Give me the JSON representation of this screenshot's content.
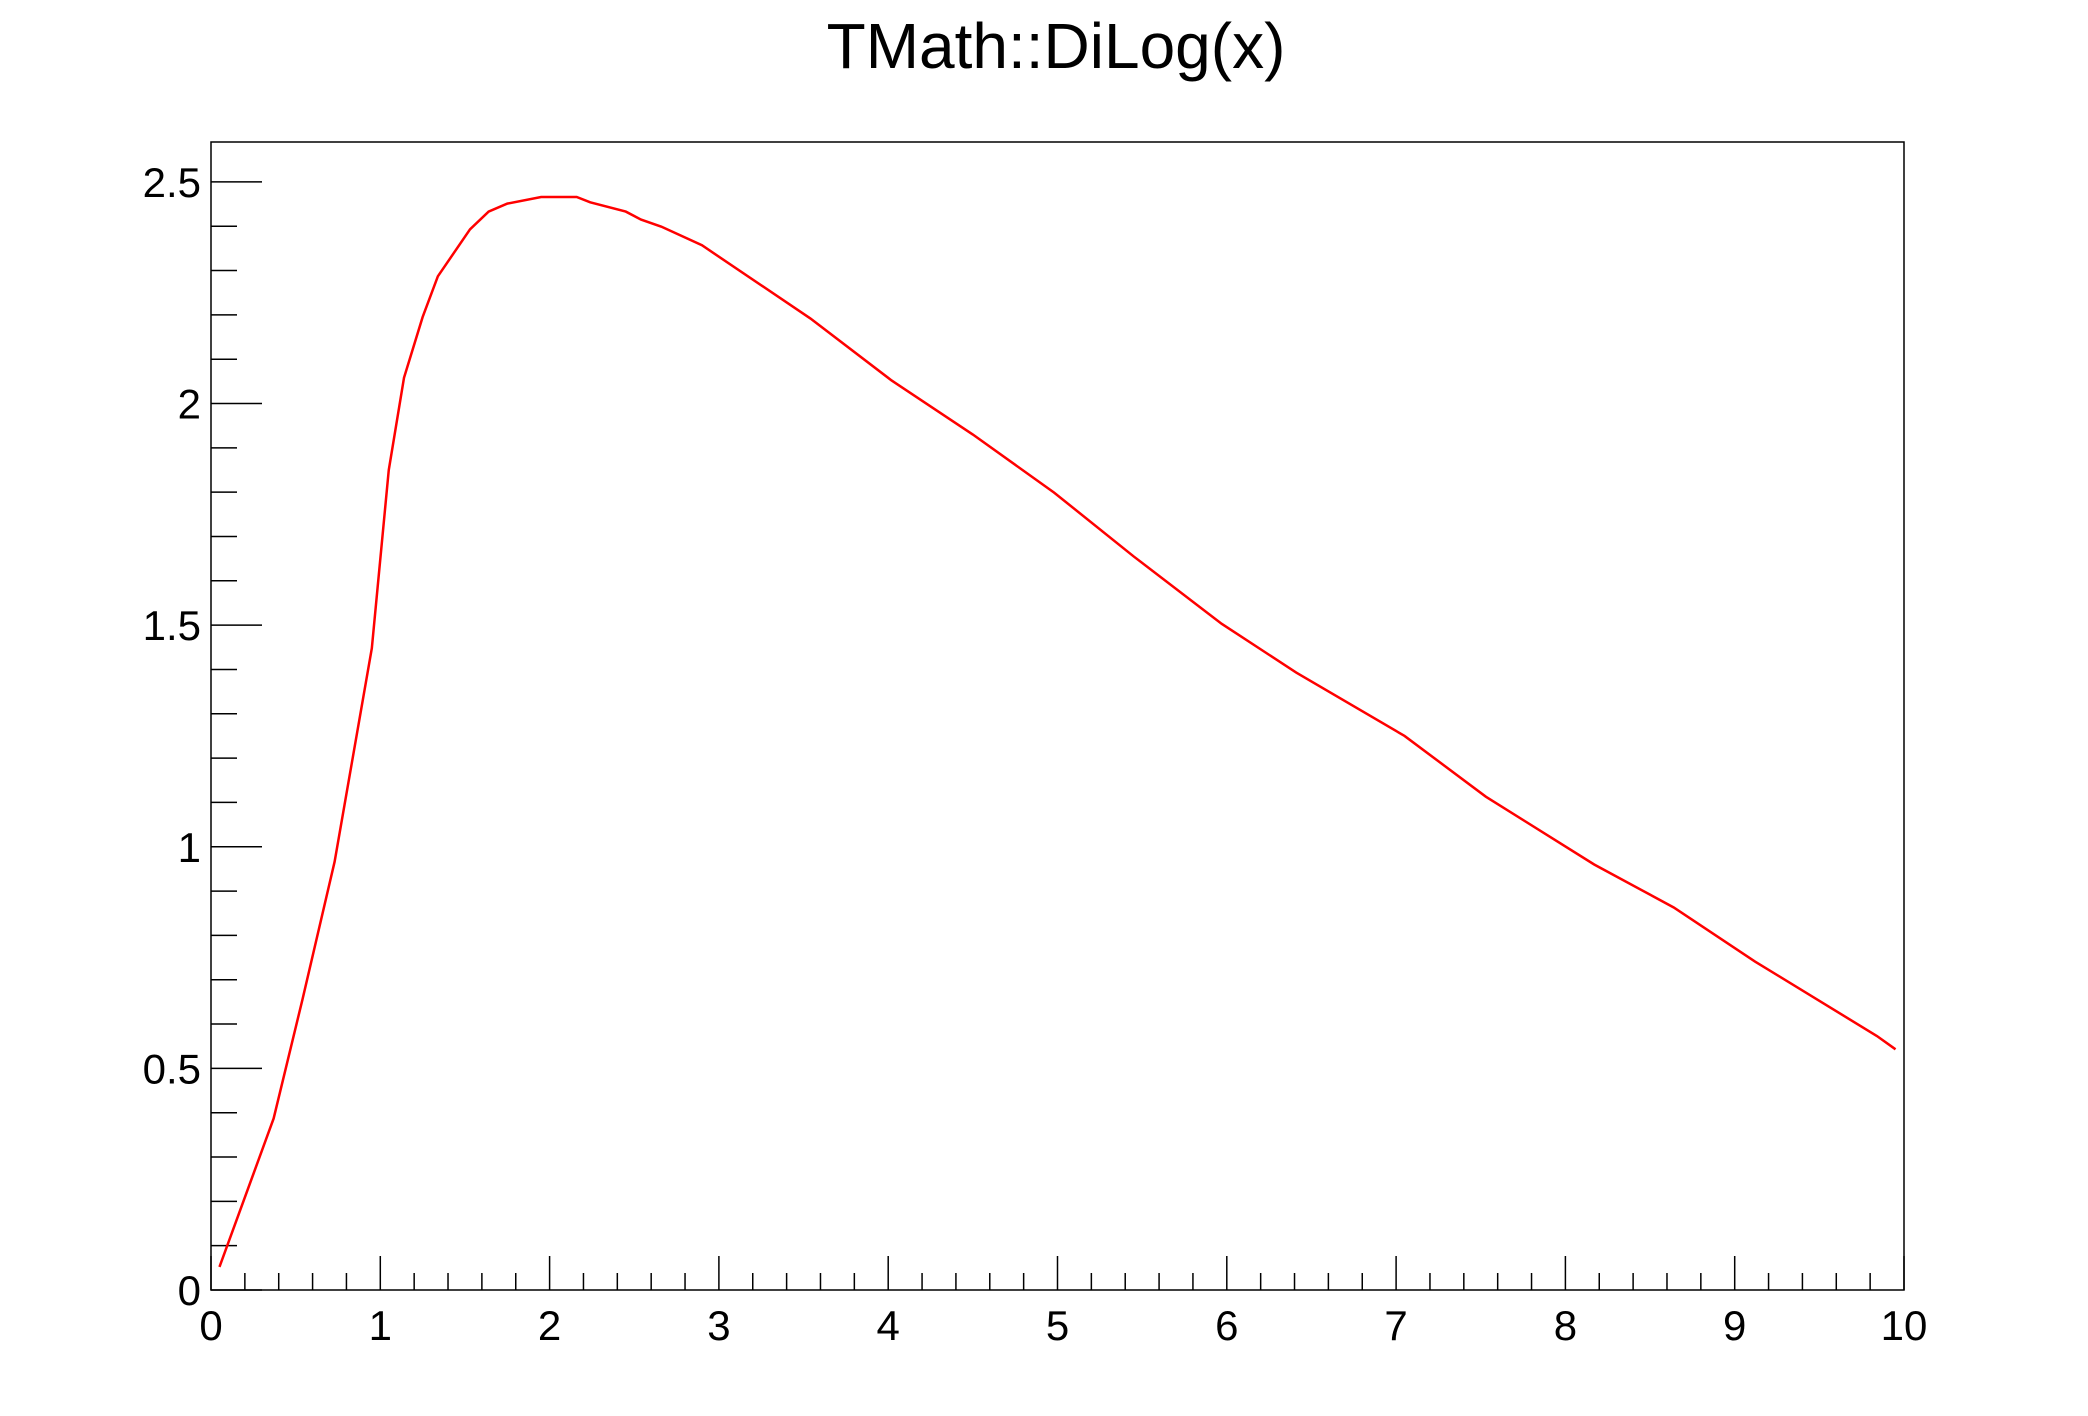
{
  "chart_data": {
    "type": "line",
    "title": "TMath::DiLog(x)",
    "xlabel": "",
    "ylabel": "",
    "xlim": [
      0,
      10
    ],
    "ylim": [
      0,
      2.59
    ],
    "x_ticks": [
      "0",
      "1",
      "2",
      "3",
      "4",
      "5",
      "6",
      "7",
      "8",
      "9",
      "10"
    ],
    "y_ticks": [
      "0",
      "0.5",
      "1",
      "1.5",
      "2",
      "2.5"
    ],
    "grid": false,
    "legend": "none",
    "line_color": "#ff0000",
    "series": [
      {
        "x": [
          0.05,
          0.37,
          0.54,
          0.73,
          0.95,
          1.05,
          1.14,
          1.25,
          1.34,
          1.53,
          1.64,
          1.75,
          1.95,
          2.16,
          2.24,
          2.45,
          2.54,
          2.66,
          2.9,
          3.54,
          4.02,
          4.5,
          4.98,
          5.45,
          5.97,
          6.41,
          7.05,
          7.53,
          8.17,
          8.64,
          9.12,
          9.84,
          9.95
        ],
        "y": [
          0.052,
          0.387,
          0.655,
          0.966,
          1.448,
          1.85,
          2.058,
          2.195,
          2.287,
          2.393,
          2.433,
          2.451,
          2.466,
          2.466,
          2.454,
          2.433,
          2.415,
          2.399,
          2.357,
          2.192,
          2.052,
          1.93,
          1.799,
          1.655,
          1.503,
          1.393,
          1.25,
          1.113,
          0.96,
          0.863,
          0.741,
          0.573,
          0.543
        ]
      }
    ]
  }
}
